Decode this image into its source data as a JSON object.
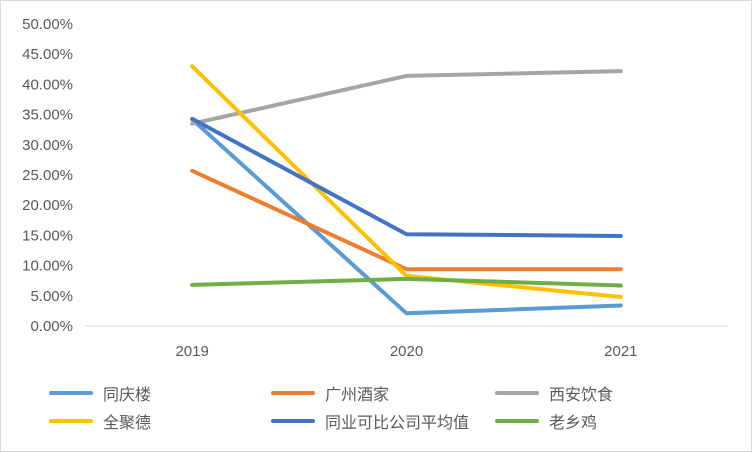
{
  "chart_data": {
    "type": "line",
    "title": "",
    "xlabel": "",
    "ylabel": "",
    "categories": [
      "2019",
      "2020",
      "2021"
    ],
    "ylim": [
      0,
      0.5
    ],
    "y_ticks": [
      "0.00%",
      "5.00%",
      "10.00%",
      "15.00%",
      "20.00%",
      "25.00%",
      "30.00%",
      "35.00%",
      "40.00%",
      "45.00%",
      "50.00%"
    ],
    "grid": false,
    "legend_position": "bottom",
    "series": [
      {
        "name": "同庆楼",
        "color": "#5b9bd5",
        "values": [
          0.342,
          0.021,
          0.034
        ]
      },
      {
        "name": "广州酒家",
        "color": "#ed7d31",
        "values": [
          0.257,
          0.094,
          0.094
        ]
      },
      {
        "name": "西安饮食",
        "color": "#a5a5a5",
        "values": [
          0.335,
          0.414,
          0.422
        ]
      },
      {
        "name": "全聚德",
        "color": "#ffc000",
        "values": [
          0.43,
          0.083,
          0.048
        ]
      },
      {
        "name": "同业可比公司平均值",
        "color": "#4472c4",
        "values": [
          0.343,
          0.152,
          0.149
        ]
      },
      {
        "name": "老乡鸡",
        "color": "#70ad47",
        "values": [
          0.068,
          0.078,
          0.067
        ]
      }
    ]
  }
}
